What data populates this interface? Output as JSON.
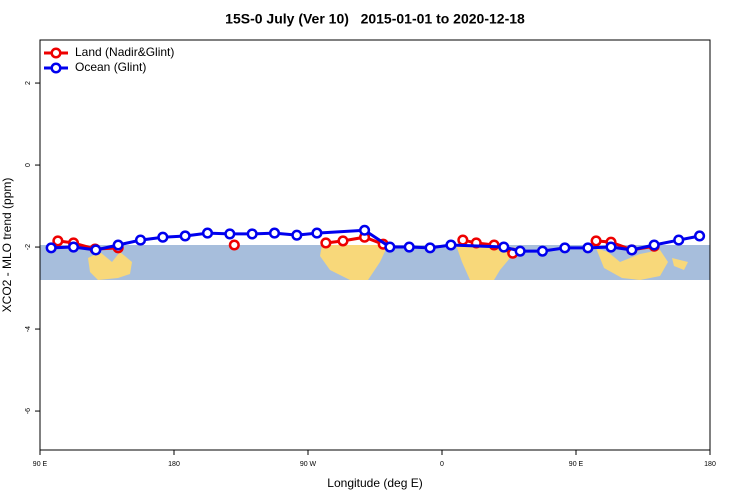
{
  "chart_data": {
    "type": "line",
    "title": "15S-0 July (Ver 10)   2015-01-01 to 2020-12-18",
    "x_label": "Longitude (deg E)",
    "y_label": "XCO2 - MLO trend (ppm)",
    "xlim": [
      90,
      540
    ],
    "ylim": [
      -6.95,
      3.05
    ],
    "xticks": [
      {
        "value": 90,
        "label": "90 E"
      },
      180,
      {
        "value": 270,
        "label": "90 W"
      },
      {
        "value": 360,
        "label": "0"
      },
      {
        "value": 450,
        "label": "90 E"
      },
      {
        "value": 540,
        "label": "180"
      }
    ],
    "yticks": [
      -6,
      -4,
      -2,
      0,
      2
    ],
    "legend": "top-left",
    "series": [
      {
        "name": "Land (Nadir&Glint)",
        "color": "#ee0000",
        "x": [
          102,
          112.5,
          127,
          142.5,
          null,
          220.5,
          null,
          282,
          293.5,
          308,
          320.5,
          null,
          374,
          383,
          395,
          407.5,
          null,
          463.5,
          473.5,
          487.5,
          502.5
        ],
        "values": [
          -1.85,
          -1.9,
          -2.05,
          -2.02,
          null,
          -1.95,
          null,
          -1.9,
          -1.85,
          -1.76,
          -1.93,
          null,
          -1.83,
          -1.9,
          -1.95,
          -2.15,
          null,
          -1.85,
          -1.88,
          -2.07,
          -1.98
        ]
      },
      {
        "name": "Ocean (Glint)",
        "color": "#0000ee",
        "x": [
          97.5,
          112.5,
          127.5,
          142.5,
          157.5,
          172.5,
          187.5,
          202.5,
          217.5,
          232.5,
          247.5,
          262.5,
          276,
          308,
          325,
          338,
          352,
          366,
          401.5,
          412.5,
          427.5,
          442.5,
          458,
          473.5,
          487.5,
          502.5,
          519,
          533
        ],
        "values": [
          -2.02,
          -2,
          -2.07,
          -1.95,
          -1.83,
          -1.76,
          -1.73,
          -1.66,
          -1.68,
          -1.68,
          -1.66,
          -1.71,
          -1.66,
          -1.59,
          -2,
          -2,
          -2.02,
          -1.95,
          -2,
          -2.1,
          -2.1,
          -2.02,
          -2.02,
          -2,
          -2.07,
          -1.95,
          -1.83,
          -1.73
        ]
      }
    ]
  }
}
